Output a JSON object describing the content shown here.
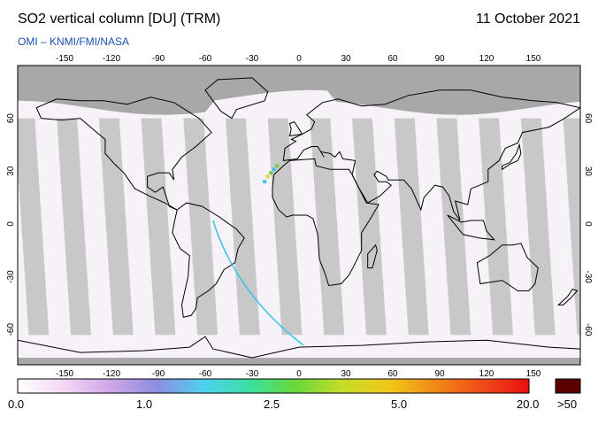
{
  "header": {
    "title": "SO2 vertical column [DU] (TRM)",
    "date": "11 October 2021",
    "credit": "OMI  –  KNMI/FMI/NASA"
  },
  "map": {
    "projection": "equirectangular",
    "lon_ticks": [
      "-150",
      "-120",
      "-90",
      "-60",
      "-30",
      "0",
      "30",
      "60",
      "90",
      "120",
      "150"
    ],
    "lat_ticks": [
      "60",
      "30",
      "0",
      "-30",
      "-60"
    ],
    "colors": {
      "ocean": "#f6f2f8",
      "no_data": "#c8c8c8",
      "polar_no_data": "#a8a8a8",
      "coast": "#000000",
      "plume_green": "#6cd13e",
      "plume_cyan": "#3ac6e8",
      "plume_yellow": "#e6d23a"
    }
  },
  "colorbar": {
    "labels": [
      "0.0",
      "1.0",
      "2.5",
      "5.0",
      "20.0",
      ">50"
    ],
    "colors": [
      "#ffffff",
      "#f3d7f3",
      "#cfa6e8",
      "#8c8de0",
      "#4fd1f0",
      "#3ae0a0",
      "#6ad93a",
      "#c7dc2a",
      "#f0c818",
      "#f08818",
      "#f04a18",
      "#e81010"
    ],
    "overflow_color": "#5a0000"
  }
}
